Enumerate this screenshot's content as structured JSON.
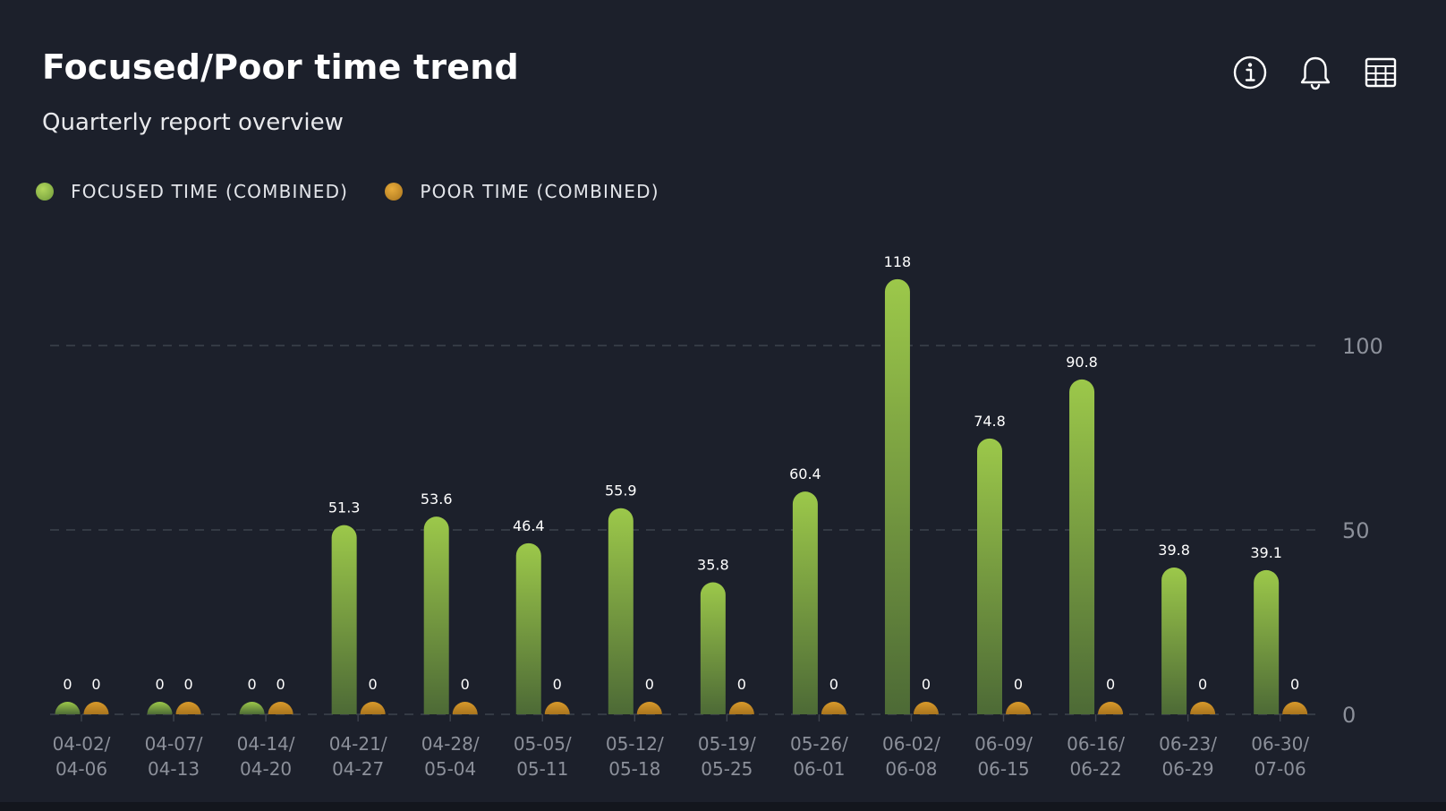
{
  "header": {
    "title": "Focused/Poor time trend",
    "subtitle": "Quarterly report overview"
  },
  "toolbar": {
    "icons": [
      "info-icon",
      "bell-icon",
      "table-icon"
    ]
  },
  "colors": {
    "background": "#1c202b",
    "focused_top": "#9cc84a",
    "focused_bottom": "#4d6a36",
    "poor_top": "#d99a2b",
    "poor_bottom": "#a8741e",
    "grid": "#3d424d",
    "axis_text": "#8c909a",
    "label_text": "#ffffff"
  },
  "chart_data": {
    "type": "bar",
    "categories": [
      [
        "04-02/",
        "04-06"
      ],
      [
        "04-07/",
        "04-13"
      ],
      [
        "04-14/",
        "04-20"
      ],
      [
        "04-21/",
        "04-27"
      ],
      [
        "04-28/",
        "05-04"
      ],
      [
        "05-05/",
        "05-11"
      ],
      [
        "05-12/",
        "05-18"
      ],
      [
        "05-19/",
        "05-25"
      ],
      [
        "05-26/",
        "06-01"
      ],
      [
        "06-02/",
        "06-08"
      ],
      [
        "06-09/",
        "06-15"
      ],
      [
        "06-16/",
        "06-22"
      ],
      [
        "06-23/",
        "06-29"
      ],
      [
        "06-30/",
        "07-06"
      ]
    ],
    "series": [
      {
        "name": "FOCUSED TIME (COMBINED)",
        "values": [
          0,
          0,
          0,
          51.3,
          53.6,
          46.4,
          55.9,
          35.8,
          60.4,
          118,
          74.8,
          90.8,
          39.8,
          39.1
        ],
        "labels": [
          "0",
          "0",
          "0",
          "51.3",
          "53.6",
          "46.4",
          "55.9",
          "35.8",
          "60.4",
          "118",
          "74.8",
          "90.8",
          "39.8",
          "39.1"
        ]
      },
      {
        "name": "POOR TIME (COMBINED)",
        "values": [
          0,
          0,
          0,
          0,
          0,
          0,
          0,
          0,
          0,
          0,
          0,
          0,
          0,
          0
        ],
        "labels": [
          "0",
          "0",
          "0",
          "0",
          "0",
          "0",
          "0",
          "0",
          "0",
          "0",
          "0",
          "0",
          "0",
          "0"
        ]
      }
    ],
    "yaxis": {
      "position": "right",
      "min": 0,
      "max": 125,
      "ticks": [
        0,
        50,
        100
      ],
      "tick_labels": [
        "0",
        "50",
        "100"
      ]
    },
    "grid": "dashed-horizontal",
    "legend": "top-left"
  }
}
